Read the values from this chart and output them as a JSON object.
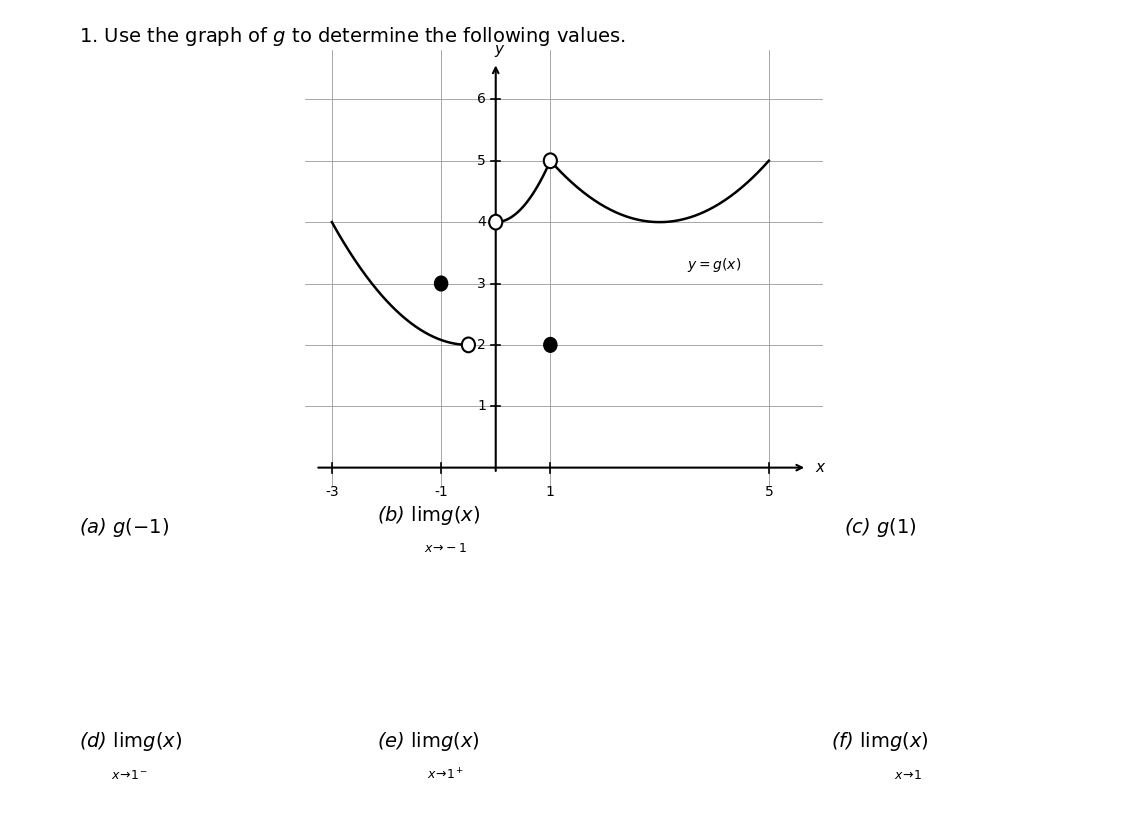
{
  "title": "1. Use the graph of $g$ to determine the following values.",
  "title_fontsize": 14,
  "background_color": "#ffffff",
  "graph_xlim": [
    -3.5,
    6.0
  ],
  "graph_ylim": [
    -0.3,
    6.8
  ],
  "x_ticks": [
    -3,
    -1,
    1,
    5
  ],
  "y_ticks": [
    1,
    2,
    3,
    4,
    5,
    6
  ],
  "label_a": "(a) $g(-1)$",
  "label_b_main": "(b) $\\lim g(x)$",
  "label_b_sub": "$x\\!\\to\\!-1$",
  "label_c": "(c) $g(1)$",
  "label_d_main": "(d) $\\lim g(x)$",
  "label_d_sub": "$x\\!\\to\\!1^-$",
  "label_e_main": "(e) $\\lim g(x)$",
  "label_e_sub": "$x\\!\\to\\!1^+$",
  "label_f_main": "(f) $\\lim g(x)$",
  "label_f_sub": "$x\\!\\to\\!1$",
  "curve_color": "#000000",
  "open_dot_color": "#ffffff",
  "closed_dot_color": "#000000",
  "label_fontsize": 13,
  "sub_fontsize": 9
}
